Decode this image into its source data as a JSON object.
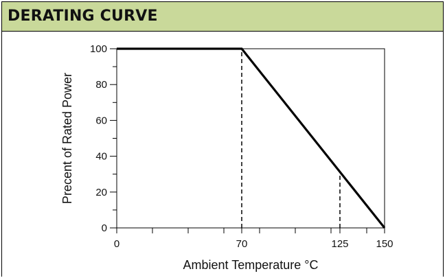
{
  "header": {
    "title": "DERATING CURVE",
    "bg_color": "#c9d99a"
  },
  "chart_data": {
    "type": "line",
    "title": "DERATING CURVE",
    "xlabel": "Ambient Temperature °C",
    "ylabel": "Precent of Rated Power",
    "xlim": [
      0,
      150
    ],
    "ylim": [
      0,
      100
    ],
    "x_ticks": [
      "0",
      "70",
      "125",
      "150"
    ],
    "x_minor_ticks": [
      20,
      40,
      60,
      80,
      100,
      120,
      140
    ],
    "y_ticks": [
      "0",
      "20",
      "40",
      "60",
      "80",
      "100"
    ],
    "y_minor_ticks": [
      10,
      30,
      50,
      70,
      90
    ],
    "grid": false,
    "series": [
      {
        "x": [
          0,
          70,
          150
        ],
        "y": [
          100,
          100,
          0
        ]
      }
    ],
    "reference_lines": [
      {
        "x": 70,
        "y": 100,
        "style": "dashed"
      },
      {
        "x": 125,
        "y": 31,
        "style": "dashed"
      }
    ],
    "line_color": "#000000"
  }
}
